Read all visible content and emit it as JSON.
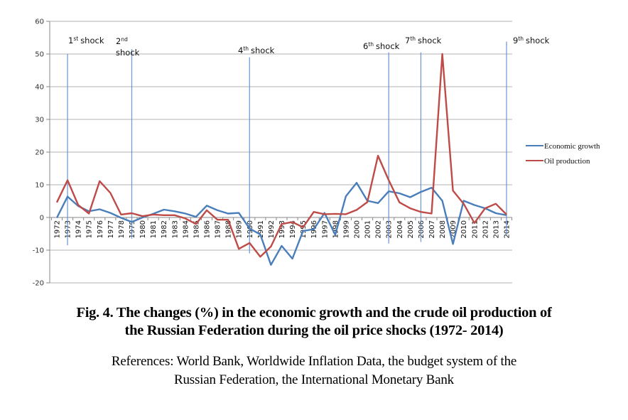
{
  "chart_data": {
    "type": "line",
    "title": "",
    "xlabel": "",
    "ylabel": "",
    "ylim": [
      -20,
      60
    ],
    "yticks": [
      60,
      50,
      40,
      30,
      20,
      10,
      0,
      -10,
      -20
    ],
    "grid": true,
    "legend_position": "right",
    "x": [
      1972,
      1973,
      1974,
      1975,
      1976,
      1977,
      1978,
      1979,
      1980,
      1981,
      1982,
      1983,
      1984,
      1985,
      1986,
      1987,
      1988,
      1989,
      1990,
      1991,
      1992,
      1993,
      1994,
      1995,
      1996,
      1997,
      1998,
      1999,
      2000,
      2001,
      2002,
      2003,
      2004,
      2005,
      2006,
      2007,
      2008,
      2009,
      2010,
      2011,
      2012,
      2013,
      2014
    ],
    "series": [
      {
        "name": "Economic growth",
        "color": "#4a7ebb",
        "values": [
          -0.1,
          6.4,
          3.5,
          1.9,
          2.5,
          1.4,
          -0.1,
          -1.4,
          0.0,
          1.1,
          2.4,
          1.9,
          1.2,
          0.2,
          3.6,
          2.2,
          1.2,
          1.4,
          -3.4,
          -5.2,
          -14.5,
          -8.7,
          -12.6,
          -4.1,
          -3.6,
          1.4,
          -5.3,
          6.5,
          10.6,
          5.1,
          4.4,
          8.0,
          7.4,
          6.2,
          7.8,
          9.1,
          5.1,
          -8.1,
          5.1,
          3.8,
          2.8,
          1.3,
          0.7
        ]
      },
      {
        "name": "Oil production",
        "color": "#be4b48",
        "values": [
          4.6,
          11.4,
          3.8,
          1.2,
          11.1,
          7.5,
          0.9,
          1.3,
          0.4,
          0.9,
          0.7,
          0.7,
          -0.3,
          -2.0,
          2.2,
          -0.7,
          -0.7,
          -9.6,
          -7.8,
          -12.0,
          -8.9,
          -2.0,
          -1.4,
          -3.0,
          1.7,
          1.0,
          1.1,
          1.0,
          2.3,
          4.7,
          18.9,
          11.4,
          4.6,
          2.8,
          1.7,
          1.2,
          50.0,
          8.2,
          4.2,
          -1.7,
          2.8,
          4.2,
          0.9
        ]
      }
    ],
    "shocks": [
      {
        "year": 1973,
        "num": "1",
        "sup": "st",
        "word": "shock",
        "ymax": 50,
        "ymin": -8.5
      },
      {
        "year": 1979,
        "num": "2",
        "sup": "nd",
        "word": "shock",
        "ymax": 51.5,
        "ymin": -6.5
      },
      {
        "year": 1990,
        "num": "4",
        "sup": "th",
        "word": "shock",
        "ymax": 49,
        "ymin": -11
      },
      {
        "year": 2003,
        "num": "6",
        "sup": "th",
        "word": "shock",
        "ymax": 50.5,
        "ymin": -8
      },
      {
        "year": 2006,
        "num": "7",
        "sup": "th",
        "word": "shock",
        "ymax": 50.5,
        "ymin": -7.5
      },
      {
        "year": 2014,
        "num": "9",
        "sup": "th",
        "word": "shock",
        "ymax": 53.8,
        "ymin": -5.5
      }
    ],
    "shock_color": "#5b8ccf",
    "gridline_color": "#b3b3b3"
  },
  "caption": {
    "title_line1": "Fig. 4. The changes (%) in the economic growth and the crude oil production of",
    "title_line2": "the Russian Federation during the oil price shocks (1972- 2014)",
    "refs_line1": "References: World Bank, Worldwide Inflation Data, the budget system of the",
    "refs_line2": "Russian Federation, the International Monetary Bank"
  }
}
